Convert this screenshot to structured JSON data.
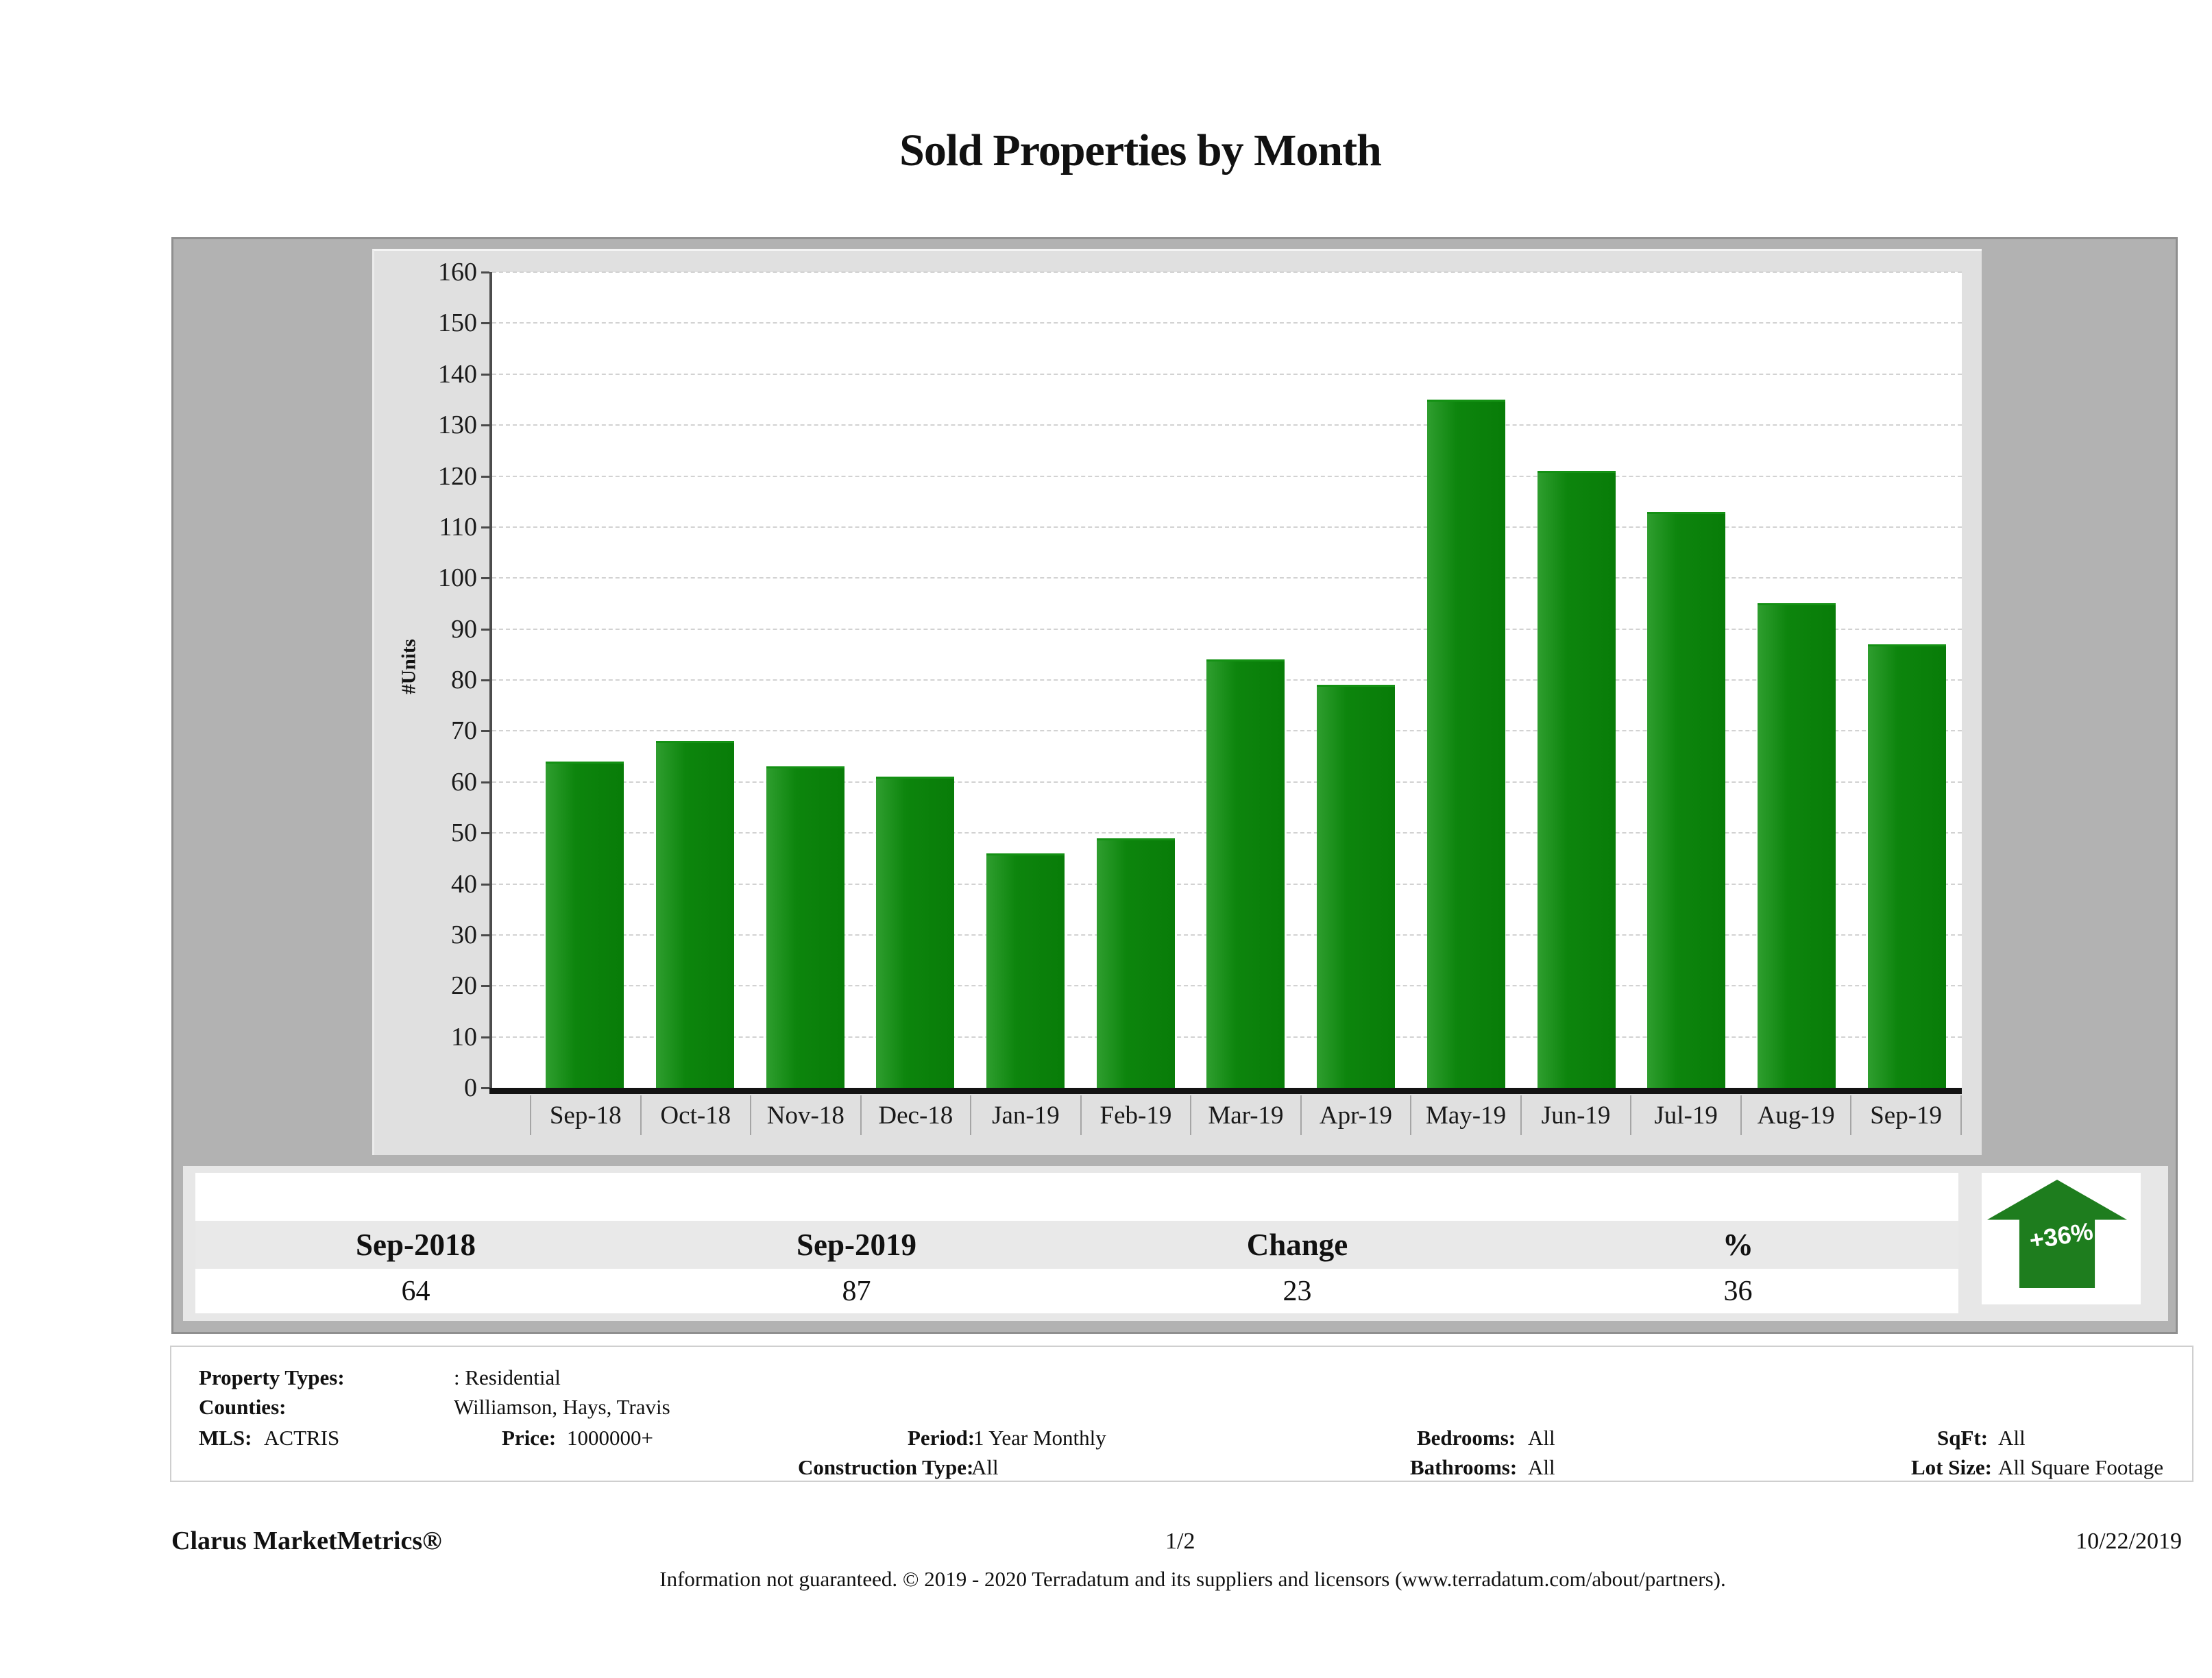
{
  "title": "Sold Properties by Month",
  "chart_data": {
    "type": "bar",
    "title": "Sold Properties by Month",
    "xlabel": "",
    "ylabel": "#Units",
    "ylim": [
      0,
      160
    ],
    "ytick_step": 10,
    "grid": "horizontal-dashed",
    "legend": "none",
    "bar_color": "#0d850d",
    "categories": [
      "Sep-18",
      "Oct-18",
      "Nov-18",
      "Dec-18",
      "Jan-19",
      "Feb-19",
      "Mar-19",
      "Apr-19",
      "May-19",
      "Jun-19",
      "Jul-19",
      "Aug-19",
      "Sep-19"
    ],
    "values": [
      64,
      68,
      63,
      61,
      46,
      49,
      84,
      79,
      135,
      121,
      113,
      95,
      87
    ]
  },
  "summary_table": {
    "columns": [
      "Sep-2018",
      "Sep-2019",
      "Change",
      "%"
    ],
    "values": [
      "64",
      "87",
      "23",
      "36"
    ]
  },
  "trend_badge": {
    "label": "+36%",
    "direction": "up",
    "color": "#1e7d1e"
  },
  "filters": {
    "property_types_label": "Property Types:",
    "property_types": ": Residential",
    "counties_label": "Counties:",
    "counties": "Williamson, Hays, Travis",
    "mls_label": "MLS:",
    "mls": "ACTRIS",
    "price_label": "Price:",
    "price": "1000000+",
    "period_label": "Period:",
    "period": "1 Year Monthly",
    "construction_label": "Construction Type:",
    "construction": "All",
    "bedrooms_label": "Bedrooms:",
    "bedrooms": "All",
    "bathrooms_label": "Bathrooms:",
    "bathrooms": "All",
    "sqft_label": "SqFt:",
    "sqft": "All",
    "lot_label": "Lot Size:",
    "lot": "All Square Footage"
  },
  "footer": {
    "brand": "Clarus MarketMetrics®",
    "page": "1/2",
    "date": "10/22/2019",
    "disclaimer": "Information not guaranteed. © 2019 - 2020 Terradatum and its suppliers and licensors (www.terradatum.com/about/partners)."
  },
  "colors": {
    "band_gray": "#b2b2b2",
    "panel_gray": "#e0e0e0",
    "strip_gray": "#e7e7e7",
    "bar_green": "#0d850d",
    "arrow_green": "#1e7d1e",
    "axis_black": "#131313"
  }
}
